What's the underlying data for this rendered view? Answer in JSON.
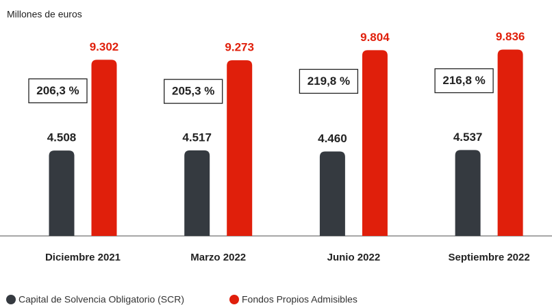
{
  "chart_data": {
    "type": "bar",
    "subtitle": "Millones de euros",
    "categories": [
      "Diciembre 2021",
      "Marzo 2022",
      "Junio 2022",
      "Septiembre 2022"
    ],
    "series": [
      {
        "name": "Capital de Solvencia Obligatorio (SCR)",
        "color": "#353a40",
        "values": [
          4508,
          4517,
          4460,
          4537
        ],
        "value_labels": [
          "4.508",
          "4.517",
          "4.460",
          "4.537"
        ]
      },
      {
        "name": "Fondos Propios Admisibles",
        "color": "#e01f0b",
        "values": [
          9302,
          9273,
          9804,
          9836
        ],
        "value_labels": [
          "9.302",
          "9.273",
          "9.804",
          "9.836"
        ]
      }
    ],
    "annotations": [
      "206,3 %",
      "205,3 %",
      "219,8 %",
      "216,8 %"
    ]
  }
}
